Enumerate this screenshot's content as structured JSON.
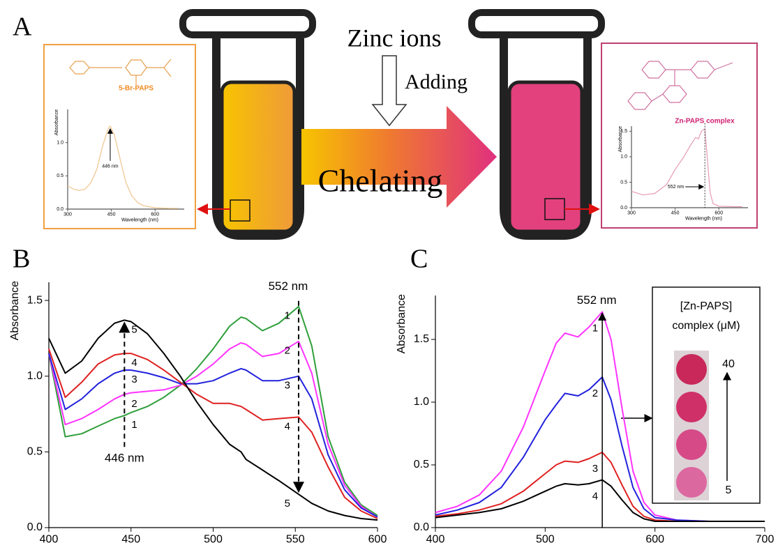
{
  "panel_labels": [
    "A",
    "B",
    "C"
  ],
  "scheme": {
    "top_label": "Zinc ions",
    "side_label": "Adding",
    "arrow_label": "Chelating"
  },
  "chart_data": [
    {
      "type": "line",
      "title": "5-Br-PAPS",
      "xlabel": "Wavelength (nm)",
      "ylabel": "Absorbance",
      "annotations": [
        "446 nm"
      ],
      "x": [
        300,
        320,
        340,
        360,
        380,
        400,
        420,
        440,
        446,
        460,
        480,
        500,
        520,
        540,
        560,
        600,
        650,
        680
      ],
      "series": [
        {
          "color": "#efc48c",
          "values": [
            0.35,
            0.3,
            0.28,
            0.3,
            0.4,
            0.6,
            0.95,
            1.22,
            1.25,
            1.12,
            0.75,
            0.4,
            0.2,
            0.1,
            0.05,
            0.02,
            0.01,
            0.01
          ]
        }
      ],
      "xlim": [
        300,
        700
      ],
      "ylim": [
        0,
        1.5
      ],
      "xticks": [
        300,
        450,
        600
      ],
      "yticks": [
        {
          "value": 0,
          "label": "0.0"
        },
        0.5,
        {
          "value": 1,
          "label": "1.0"
        }
      ]
    },
    {
      "type": "line",
      "title": "Zn-PAPS complex",
      "xlabel": "Wavelength (nm)",
      "ylabel": "Absorbance",
      "annotations": [
        "552 nm"
      ],
      "x": [
        300,
        340,
        380,
        420,
        450,
        480,
        500,
        520,
        530,
        540,
        552,
        560,
        570,
        580,
        600,
        650,
        680
      ],
      "series": [
        {
          "color": "#e69ab4",
          "values": [
            0.32,
            0.25,
            0.28,
            0.45,
            0.75,
            1.0,
            1.2,
            1.38,
            1.35,
            1.5,
            1.55,
            1.0,
            0.3,
            0.08,
            0.03,
            0.02,
            0.02
          ]
        }
      ],
      "xlim": [
        300,
        700
      ],
      "ylim": [
        0,
        1.6
      ],
      "xticks": [
        300,
        450,
        600
      ],
      "yticks": [
        {
          "value": 0,
          "label": "0.0"
        },
        0.5,
        {
          "value": 1,
          "label": "1.0"
        },
        1.5
      ]
    },
    {
      "type": "line",
      "ylabel": "Absorbance",
      "annotations": [
        "552 nm",
        "446 nm"
      ],
      "x": [
        400,
        410,
        420,
        430,
        440,
        446,
        450,
        460,
        470,
        480,
        490,
        500,
        510,
        517,
        520,
        530,
        540,
        552,
        560,
        570,
        580,
        590,
        600
      ],
      "series": [
        {
          "name": "1",
          "color": "#2e9e3a",
          "values": [
            1.15,
            0.6,
            0.62,
            0.67,
            0.72,
            0.74,
            0.76,
            0.8,
            0.86,
            0.94,
            1.05,
            1.18,
            1.33,
            1.39,
            1.38,
            1.3,
            1.35,
            1.46,
            1.2,
            0.6,
            0.3,
            0.15,
            0.08
          ]
        },
        {
          "name": "2",
          "color": "#ff33ff",
          "values": [
            1.15,
            0.68,
            0.72,
            0.78,
            0.85,
            0.88,
            0.89,
            0.9,
            0.91,
            0.94,
            1.0,
            1.08,
            1.18,
            1.22,
            1.21,
            1.13,
            1.15,
            1.23,
            1.02,
            0.55,
            0.28,
            0.14,
            0.07
          ]
        },
        {
          "name": "3",
          "color": "#2222dd",
          "values": [
            1.15,
            0.78,
            0.85,
            0.95,
            1.02,
            1.04,
            1.04,
            1.02,
            0.99,
            0.95,
            0.95,
            0.97,
            1.02,
            1.05,
            1.04,
            0.97,
            0.97,
            1.0,
            0.85,
            0.48,
            0.25,
            0.13,
            0.07
          ]
        },
        {
          "name": "4",
          "color": "#e02020",
          "values": [
            1.18,
            0.86,
            0.96,
            1.08,
            1.14,
            1.15,
            1.15,
            1.11,
            1.04,
            0.96,
            0.88,
            0.82,
            0.82,
            0.8,
            0.78,
            0.71,
            0.72,
            0.73,
            0.63,
            0.4,
            0.2,
            0.11,
            0.06
          ]
        },
        {
          "name": "5",
          "color": "#000000",
          "values": [
            1.25,
            1.02,
            1.1,
            1.25,
            1.35,
            1.37,
            1.36,
            1.28,
            1.15,
            1.0,
            0.83,
            0.68,
            0.55,
            0.5,
            0.45,
            0.38,
            0.31,
            0.22,
            0.16,
            0.11,
            0.08,
            0.06,
            0.05
          ]
        }
      ],
      "xlim": [
        400,
        600
      ],
      "ylim": [
        0,
        1.62
      ],
      "xticks": [
        400,
        450,
        500,
        550,
        600
      ],
      "yticks": [
        {
          "value": 0,
          "label": "0.0"
        },
        0.5,
        {
          "value": 1,
          "label": "1.0"
        },
        1.5
      ]
    },
    {
      "type": "line",
      "ylabel": "Absorbance",
      "annotations": [
        "552 nm"
      ],
      "inset_labels": [
        "[Zn-PAPS]",
        "complex (μM)",
        "40",
        "5"
      ],
      "x": [
        400,
        420,
        440,
        460,
        480,
        500,
        510,
        518,
        530,
        540,
        552,
        560,
        570,
        580,
        590,
        600,
        620,
        650,
        700
      ],
      "series": [
        {
          "name": "1",
          "color": "#ff33ff",
          "values": [
            0.12,
            0.17,
            0.26,
            0.45,
            0.8,
            1.25,
            1.47,
            1.55,
            1.52,
            1.6,
            1.72,
            1.5,
            0.95,
            0.45,
            0.2,
            0.1,
            0.06,
            0.05,
            0.05
          ]
        },
        {
          "name": "2",
          "color": "#2222dd",
          "values": [
            0.1,
            0.14,
            0.2,
            0.32,
            0.56,
            0.86,
            0.98,
            1.07,
            1.05,
            1.1,
            1.2,
            1.02,
            0.65,
            0.32,
            0.15,
            0.08,
            0.06,
            0.05,
            0.05
          ]
        },
        {
          "name": "3",
          "color": "#e02020",
          "values": [
            0.09,
            0.11,
            0.14,
            0.19,
            0.29,
            0.43,
            0.5,
            0.53,
            0.52,
            0.55,
            0.6,
            0.52,
            0.34,
            0.17,
            0.09,
            0.06,
            0.05,
            0.05,
            0.05
          ]
        },
        {
          "name": "4",
          "color": "#000000",
          "values": [
            0.08,
            0.1,
            0.12,
            0.15,
            0.21,
            0.29,
            0.33,
            0.35,
            0.34,
            0.35,
            0.38,
            0.33,
            0.22,
            0.12,
            0.07,
            0.05,
            0.05,
            0.05,
            0.05
          ]
        }
      ],
      "xlim": [
        400,
        700
      ],
      "ylim": [
        0,
        1.85
      ],
      "xticks": [
        400,
        500,
        600,
        700
      ],
      "yticks": [
        {
          "value": 0,
          "label": "0.0"
        },
        0.5,
        {
          "value": 1,
          "label": "1.0"
        },
        1.5
      ]
    }
  ]
}
